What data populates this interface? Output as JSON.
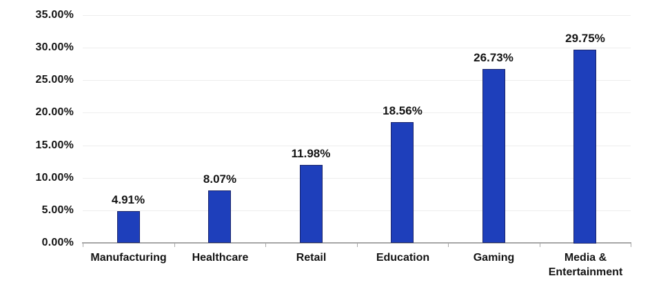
{
  "chart_data": {
    "type": "bar",
    "categories": [
      "Manufacturing",
      "Healthcare",
      "Retail",
      "Education",
      "Gaming",
      "Media & Entertainment"
    ],
    "values": [
      4.91,
      8.07,
      11.98,
      18.56,
      26.73,
      29.75
    ],
    "data_labels": [
      "4.91%",
      "8.07%",
      "11.98%",
      "18.56%",
      "26.73%",
      "29.75%"
    ],
    "y_tick_values": [
      0,
      5,
      10,
      15,
      20,
      25,
      30,
      35
    ],
    "y_tick_labels": [
      "0.00%",
      "5.00%",
      "10.00%",
      "15.00%",
      "20.00%",
      "25.00%",
      "30.00%",
      "35.00%"
    ],
    "ylim": [
      0,
      35
    ],
    "grid": "horizontal",
    "legend": "none"
  },
  "colors": {
    "bar_fill": "#1e3fbb",
    "bar_border": "#19246b",
    "gridline": "#ededed",
    "axis_line": "#a6a6a6",
    "label_text": "#141414",
    "background": "#ffffff"
  }
}
